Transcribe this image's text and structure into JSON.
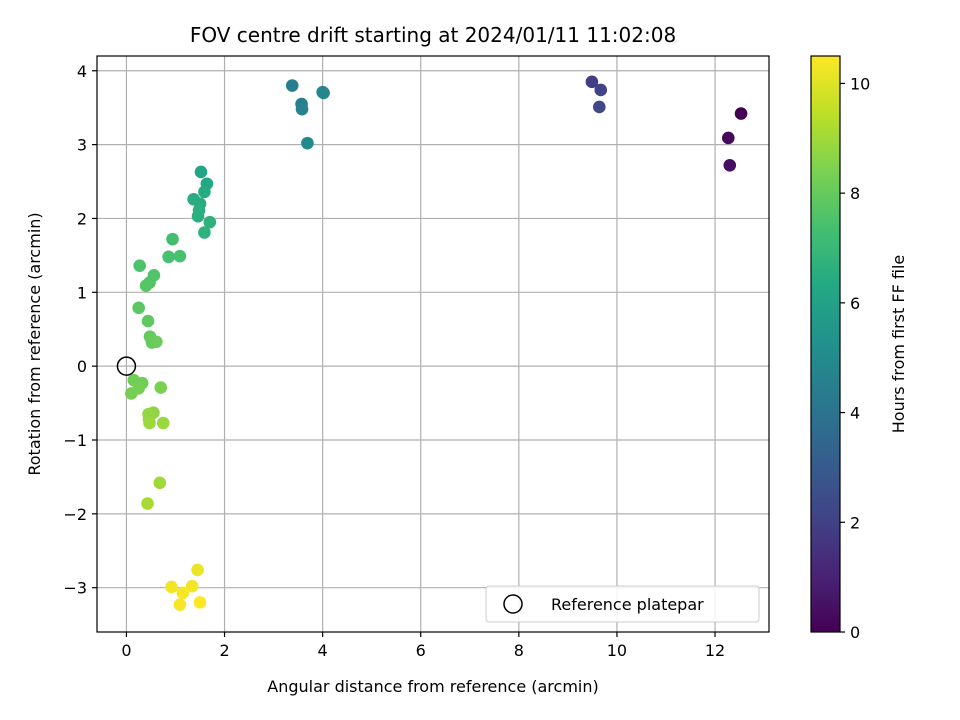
{
  "chart_data": {
    "type": "scatter",
    "title": "FOV centre drift starting at 2024/01/11 11:02:08",
    "xlabel": "Angular distance from reference (arcmin)",
    "ylabel": "Rotation from reference (arcmin)",
    "colorbar_label": "Hours from first FF file",
    "xlim": [
      -0.6,
      13.1
    ],
    "ylim": [
      -3.6,
      4.2
    ],
    "clim": [
      0,
      10.5
    ],
    "colormap": "viridis",
    "grid": true,
    "legend_position": "lower-right",
    "x_ticks": [
      0,
      2,
      4,
      6,
      8,
      10,
      12
    ],
    "y_ticks": [
      -3,
      -2,
      -1,
      0,
      1,
      2,
      3,
      4
    ],
    "colorbar_ticks": [
      0,
      2,
      4,
      6,
      8,
      10
    ],
    "x_tick_labels": [
      "0",
      "2",
      "4",
      "6",
      "8",
      "10",
      "12"
    ],
    "y_tick_labels": [
      "−3",
      "−2",
      "−1",
      "0",
      "1",
      "2",
      "3",
      "4"
    ],
    "colorbar_tick_labels": [
      "0",
      "2",
      "4",
      "6",
      "8",
      "10"
    ],
    "reference": {
      "name": "Reference platepar",
      "x": 0,
      "y": 0
    },
    "points": [
      {
        "x": 12.53,
        "y": 3.42,
        "c": 0.0
      },
      {
        "x": 12.27,
        "y": 3.09,
        "c": 0.2
      },
      {
        "x": 12.3,
        "y": 2.72,
        "c": 0.4
      },
      {
        "x": 9.49,
        "y": 3.85,
        "c": 1.9
      },
      {
        "x": 9.67,
        "y": 3.74,
        "c": 2.1
      },
      {
        "x": 9.64,
        "y": 3.51,
        "c": 2.3
      },
      {
        "x": 3.38,
        "y": 3.8,
        "c": 4.4
      },
      {
        "x": 3.57,
        "y": 3.55,
        "c": 4.5
      },
      {
        "x": 3.58,
        "y": 3.48,
        "c": 4.6
      },
      {
        "x": 4.0,
        "y": 3.71,
        "c": 4.7
      },
      {
        "x": 4.02,
        "y": 3.7,
        "c": 4.8
      },
      {
        "x": 3.69,
        "y": 3.02,
        "c": 4.9
      },
      {
        "x": 1.52,
        "y": 2.63,
        "c": 6.2
      },
      {
        "x": 1.64,
        "y": 2.47,
        "c": 6.3
      },
      {
        "x": 1.59,
        "y": 2.36,
        "c": 6.4
      },
      {
        "x": 1.37,
        "y": 2.26,
        "c": 6.5
      },
      {
        "x": 1.5,
        "y": 2.2,
        "c": 6.5
      },
      {
        "x": 1.48,
        "y": 2.11,
        "c": 6.6
      },
      {
        "x": 1.46,
        "y": 2.03,
        "c": 6.6
      },
      {
        "x": 1.7,
        "y": 1.95,
        "c": 6.7
      },
      {
        "x": 1.59,
        "y": 1.81,
        "c": 6.7
      },
      {
        "x": 0.94,
        "y": 1.72,
        "c": 7.3
      },
      {
        "x": 0.86,
        "y": 1.48,
        "c": 7.4
      },
      {
        "x": 1.09,
        "y": 1.49,
        "c": 7.4
      },
      {
        "x": 0.27,
        "y": 1.36,
        "c": 7.5
      },
      {
        "x": 0.56,
        "y": 1.23,
        "c": 7.6
      },
      {
        "x": 0.47,
        "y": 1.13,
        "c": 7.6
      },
      {
        "x": 0.4,
        "y": 1.09,
        "c": 7.7
      },
      {
        "x": 0.25,
        "y": 0.79,
        "c": 7.8
      },
      {
        "x": 0.44,
        "y": 0.61,
        "c": 7.9
      },
      {
        "x": 0.48,
        "y": 0.4,
        "c": 8.0
      },
      {
        "x": 0.52,
        "y": 0.32,
        "c": 8.0
      },
      {
        "x": 0.61,
        "y": 0.33,
        "c": 8.1
      },
      {
        "x": 0.15,
        "y": -0.19,
        "c": 8.2
      },
      {
        "x": 0.32,
        "y": -0.23,
        "c": 8.2
      },
      {
        "x": 0.25,
        "y": -0.3,
        "c": 8.3
      },
      {
        "x": 0.1,
        "y": -0.37,
        "c": 8.3
      },
      {
        "x": 0.7,
        "y": -0.29,
        "c": 8.4
      },
      {
        "x": 0.55,
        "y": -0.63,
        "c": 8.7
      },
      {
        "x": 0.45,
        "y": -0.65,
        "c": 8.8
      },
      {
        "x": 0.46,
        "y": -0.72,
        "c": 8.8
      },
      {
        "x": 0.47,
        "y": -0.77,
        "c": 8.9
      },
      {
        "x": 0.75,
        "y": -0.77,
        "c": 8.9
      },
      {
        "x": 0.68,
        "y": -1.58,
        "c": 9.0
      },
      {
        "x": 0.43,
        "y": -1.86,
        "c": 9.1
      },
      {
        "x": 1.45,
        "y": -2.76,
        "c": 10.2
      },
      {
        "x": 1.34,
        "y": -2.98,
        "c": 10.3
      },
      {
        "x": 0.92,
        "y": -2.99,
        "c": 10.3
      },
      {
        "x": 1.15,
        "y": -3.07,
        "c": 10.4
      },
      {
        "x": 1.09,
        "y": -3.23,
        "c": 10.4
      },
      {
        "x": 1.5,
        "y": -3.2,
        "c": 10.5
      }
    ]
  }
}
